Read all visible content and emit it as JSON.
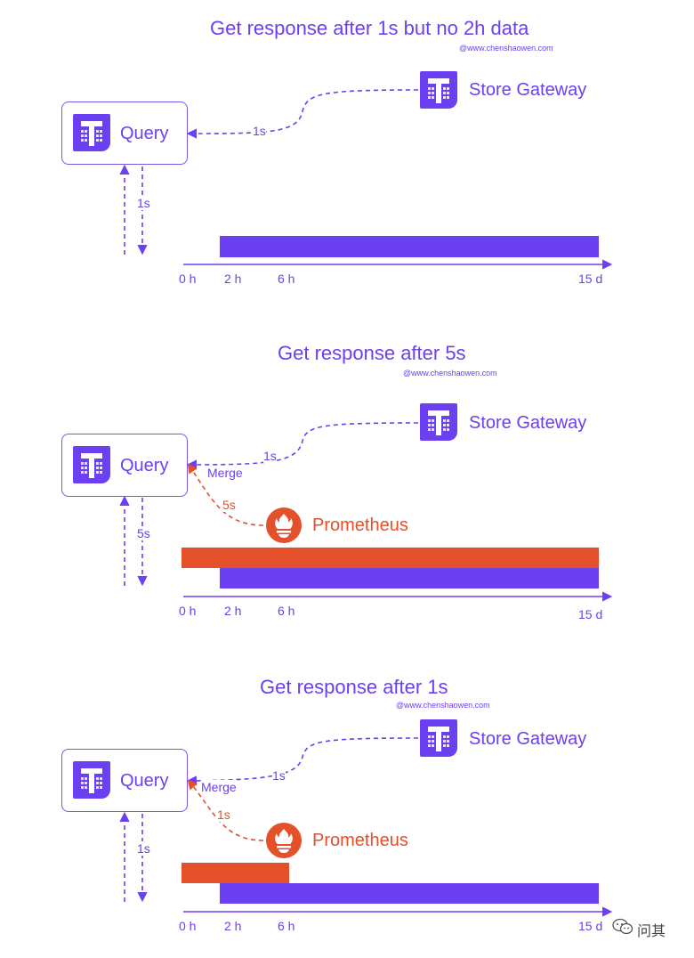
{
  "panels": [
    {
      "title": "Get response after 1s but no 2h data",
      "credit": "@www.chenshaowen.com",
      "query_label": "Query",
      "store_label": "Store Gateway",
      "store_edge_label": "1s",
      "response_label": "1s",
      "ticks": [
        "0 h",
        "2 h",
        "6 h",
        "15 d"
      ]
    },
    {
      "title": "Get response after 5s",
      "credit": "@www.chenshaowen.com",
      "query_label": "Query",
      "store_label": "Store Gateway",
      "store_edge_label": "1s",
      "merge_label": "Merge",
      "prometheus_label": "Prometheus",
      "prometheus_edge_label": "5s",
      "response_label": "5s",
      "ticks": [
        "0 h",
        "2 h",
        "6 h",
        "15 d"
      ]
    },
    {
      "title": "Get response after 1s",
      "credit": "@www.chenshaowen.com",
      "query_label": "Query",
      "store_label": "Store Gateway",
      "store_edge_label": "1s",
      "merge_label": "Merge",
      "prometheus_label": "Prometheus",
      "prometheus_edge_label": "1s",
      "response_label": "1s",
      "ticks": [
        "0 h",
        "2 h",
        "6 h",
        "15 d"
      ]
    }
  ],
  "watermark": "问其",
  "colors": {
    "thanos": "#6b3ff2",
    "prometheus": "#e4502a"
  }
}
